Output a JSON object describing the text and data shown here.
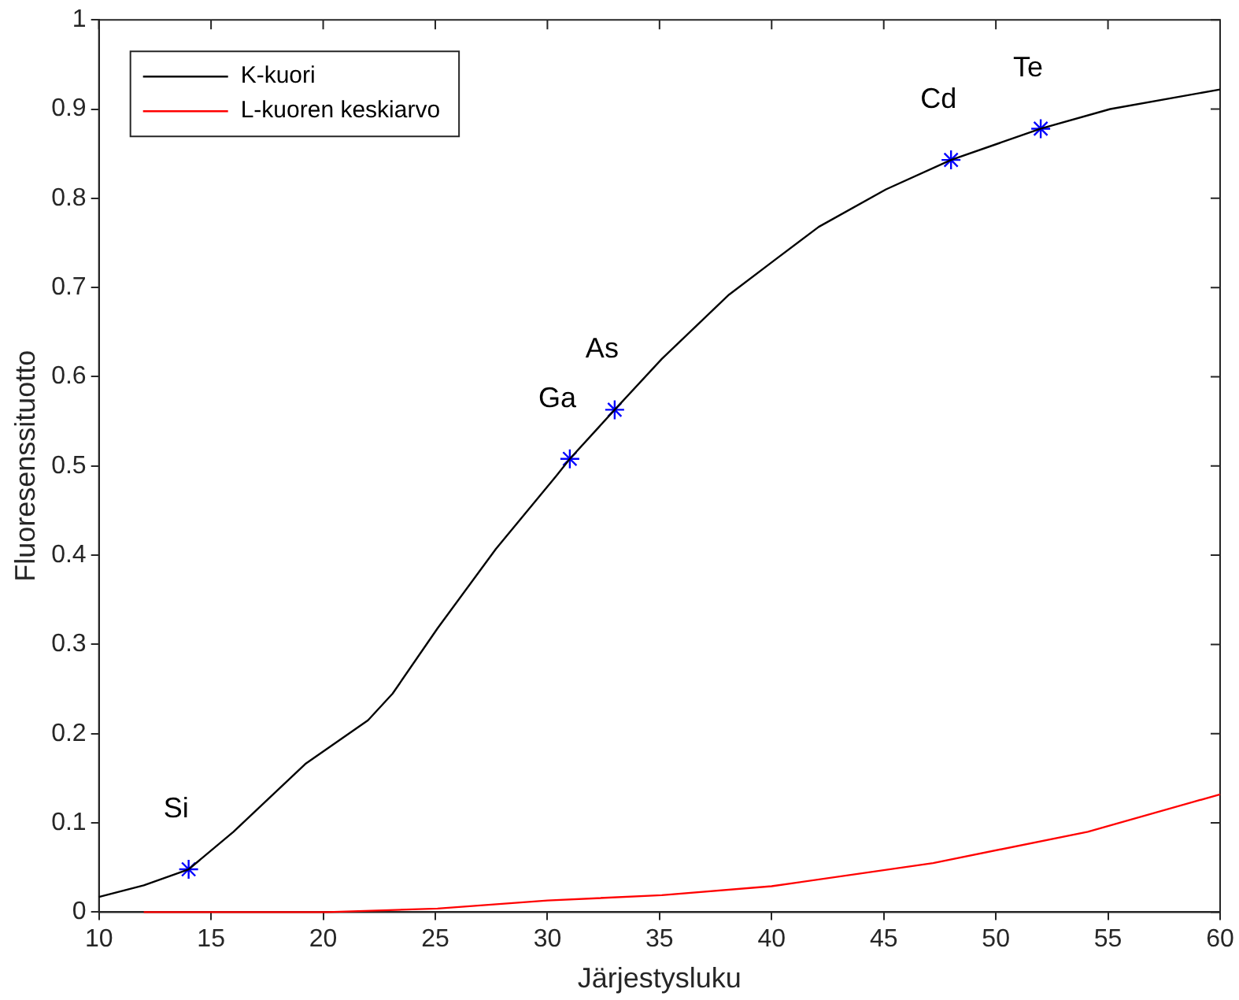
{
  "chart_data": {
    "type": "line",
    "xlabel": "Järjestysluku",
    "ylabel": "Fluoresenssituotto",
    "xlim": [
      10,
      60
    ],
    "xticks": [
      10,
      15,
      20,
      25,
      30,
      35,
      40,
      45,
      50,
      55,
      60
    ],
    "ylim": [
      0,
      1
    ],
    "yticks": [
      0,
      0.1,
      0.2,
      0.3,
      0.4,
      0.5,
      0.6,
      0.7,
      0.8,
      0.9,
      1
    ],
    "grid": false,
    "legend": "top left",
    "series": [
      {
        "name": "K-kuori",
        "color": "#000000",
        "x": [
          10,
          12,
          14,
          16,
          19.2,
          22,
          23.1,
          25.1,
          27.7,
          30.4,
          31,
          33,
          35.1,
          38.1,
          40.2,
          42.1,
          45.1,
          48,
          52,
          55.1,
          60
        ],
        "values": [
          0.017,
          0.03,
          0.048,
          0.09,
          0.166,
          0.215,
          0.245,
          0.318,
          0.407,
          0.489,
          0.508,
          0.563,
          0.62,
          0.692,
          0.732,
          0.768,
          0.81,
          0.843,
          0.878,
          0.9,
          0.922
        ],
        "marker": "none"
      },
      {
        "name": "L-kuoren keskiarvo",
        "color": "#ff0000",
        "x": [
          12,
          20.2,
          25.1,
          30,
          35.1,
          40,
          47.2,
          54.1,
          60
        ],
        "values": [
          0,
          0,
          0.004,
          0.013,
          0.019,
          0.029,
          0.055,
          0.09,
          0.132
        ],
        "marker": "none"
      },
      {
        "type": "scatter",
        "color": "#0000ff",
        "marker": "cross",
        "x": [
          14,
          31,
          33,
          48,
          52
        ],
        "values": [
          0.048,
          0.508,
          0.563,
          0.843,
          0.878
        ]
      }
    ],
    "annotations": [
      {
        "text": "Si",
        "x": 14,
        "y": 0.048
      },
      {
        "text": "Ga",
        "x": 31,
        "y": 0.508
      },
      {
        "text": "As",
        "x": 33,
        "y": 0.563
      },
      {
        "text": "Cd",
        "x": 48,
        "y": 0.843
      },
      {
        "text": "Te",
        "x": 52,
        "y": 0.878
      }
    ]
  }
}
